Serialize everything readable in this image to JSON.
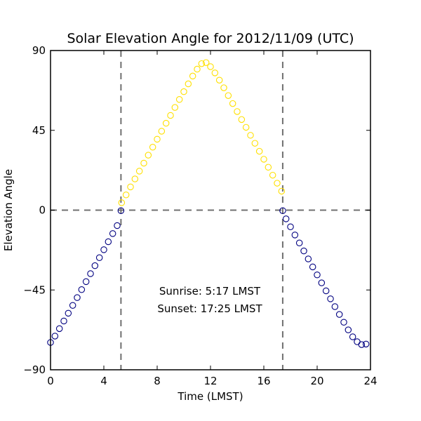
{
  "chart_data": {
    "type": "scatter",
    "title": "Solar Elevation Angle for 2012/11/09 (UTC)",
    "xlabel": "Time (LMST)",
    "ylabel": "Elevation Angle",
    "xlim": [
      0,
      24
    ],
    "ylim": [
      -90,
      90
    ],
    "xticks": [
      0,
      4,
      8,
      12,
      16,
      20,
      24
    ],
    "yticks": [
      -90,
      -45,
      0,
      45,
      90
    ],
    "ytick_labels": [
      "−90",
      "−45",
      "0",
      "45",
      "90"
    ],
    "grid": false,
    "marker": "hollow-circle",
    "colors": {
      "night": "#000080",
      "day": "#ffe000",
      "reference_lines": "#707070"
    },
    "reference_lines": {
      "sunrise_x": 5.283,
      "sunset_x": 17.417,
      "horizon_y": 0
    },
    "annotations": [
      "Sunrise: 5:17 LMST",
      "Sunset: 17:25 LMST"
    ],
    "series": [
      {
        "x": [
          0.0,
          0.333,
          0.667,
          1.0,
          1.333,
          1.667,
          2.0,
          2.333,
          2.667,
          3.0,
          3.333,
          3.667,
          4.0,
          4.333,
          4.667,
          5.0,
          5.283,
          17.417,
          17.667,
          18.0,
          18.333,
          18.667,
          19.0,
          19.333,
          19.667,
          20.0,
          20.333,
          20.667,
          21.0,
          21.333,
          21.667,
          22.0,
          22.333,
          22.667,
          23.0,
          23.333,
          23.667
        ],
        "y": [
          -74.6,
          -71.0,
          -66.8,
          -62.5,
          -58.1,
          -53.7,
          -49.3,
          -44.8,
          -40.3,
          -35.8,
          -31.3,
          -26.8,
          -22.3,
          -17.8,
          -13.2,
          -8.7,
          -0.3,
          -0.3,
          -4.9,
          -9.4,
          -14.0,
          -18.5,
          -23.0,
          -27.5,
          -32.0,
          -36.5,
          -41.0,
          -45.5,
          -50.0,
          -54.4,
          -58.8,
          -63.2,
          -67.5,
          -71.4,
          -74.2,
          -75.8,
          -75.5
        ]
      },
      {
        "x": [
          5.333,
          5.667,
          6.0,
          6.333,
          6.667,
          7.0,
          7.333,
          7.667,
          8.0,
          8.333,
          8.667,
          9.0,
          9.333,
          9.667,
          10.0,
          10.333,
          10.667,
          11.0,
          11.333,
          11.667,
          12.0,
          12.333,
          12.667,
          13.0,
          13.333,
          13.667,
          14.0,
          14.333,
          14.667,
          15.0,
          15.333,
          15.667,
          16.0,
          16.333,
          16.667,
          17.0,
          17.333
        ],
        "y": [
          4.2,
          8.6,
          13.1,
          17.6,
          22.0,
          26.5,
          31.0,
          35.5,
          40.0,
          44.5,
          49.0,
          53.4,
          57.9,
          62.4,
          66.8,
          71.2,
          75.6,
          79.5,
          82.6,
          83.2,
          80.9,
          77.4,
          73.3,
          69.0,
          64.6,
          60.1,
          55.6,
          51.1,
          46.7,
          42.2,
          37.7,
          33.2,
          28.7,
          24.2,
          19.7,
          15.2,
          10.7
        ]
      }
    ]
  }
}
